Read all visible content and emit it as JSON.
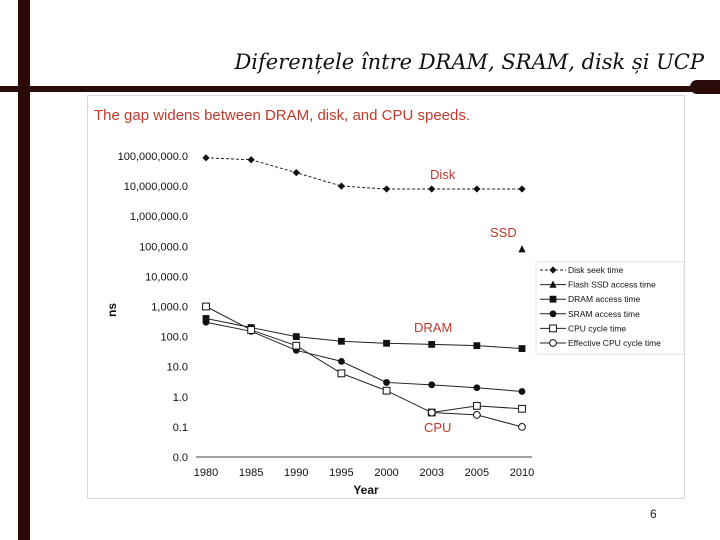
{
  "slide": {
    "title": "Diferențele între DRAM, SRAM, disk și UCP",
    "page_number": "6",
    "accent_color": "#2b0a0a"
  },
  "chart_data": {
    "type": "line",
    "title": "The gap widens between DRAM, disk, and CPU speeds.",
    "xlabel": "Year",
    "ylabel": "ns",
    "yscale": "log",
    "categories": [
      "1980",
      "1985",
      "1990",
      "1995",
      "2000",
      "2003",
      "2005",
      "2010"
    ],
    "ytick_labels": [
      "100,000,000.0",
      "10,000,000.0",
      "1,000,000.0",
      "100,000.0",
      "10,000.0",
      "1,000.0",
      "100.0",
      "10.0",
      "1.0",
      "0.1",
      "0.0"
    ],
    "ytick_values": [
      100000000,
      10000000,
      1000000,
      100000,
      10000,
      1000,
      100,
      10,
      1,
      0.1,
      0.01
    ],
    "ylim": [
      0.01,
      100000000
    ],
    "series": [
      {
        "name": "Disk seek time",
        "marker": "diamond",
        "values": [
          87000000,
          75000000,
          28000000,
          10000000,
          8000000,
          8000000,
          8000000,
          8000000
        ]
      },
      {
        "name": "Flash SSD access time",
        "marker": "triangle",
        "values": [
          null,
          null,
          null,
          null,
          null,
          null,
          null,
          80000
        ]
      },
      {
        "name": "DRAM access time",
        "marker": "square",
        "values": [
          400,
          200,
          100,
          70,
          60,
          55,
          50,
          40
        ]
      },
      {
        "name": "SRAM access time",
        "marker": "circle",
        "values": [
          300,
          150,
          35,
          15,
          3,
          2.5,
          2,
          1.5
        ]
      },
      {
        "name": "CPU cycle time",
        "marker": "square-open",
        "values": [
          1000,
          166,
          50,
          6,
          1.6,
          0.3,
          0.5,
          0.4
        ]
      },
      {
        "name": "Effective CPU cycle time",
        "marker": "circle-open",
        "values": [
          null,
          null,
          null,
          null,
          null,
          0.3,
          0.25,
          0.1
        ]
      }
    ],
    "annotations": [
      {
        "text": "Disk",
        "near_series": "Disk seek time"
      },
      {
        "text": "SSD",
        "near_series": "Flash SSD access time"
      },
      {
        "text": "DRAM",
        "near_series": "DRAM access time"
      },
      {
        "text": "CPU",
        "near_series": "CPU cycle time"
      }
    ],
    "legend_position": "right"
  }
}
